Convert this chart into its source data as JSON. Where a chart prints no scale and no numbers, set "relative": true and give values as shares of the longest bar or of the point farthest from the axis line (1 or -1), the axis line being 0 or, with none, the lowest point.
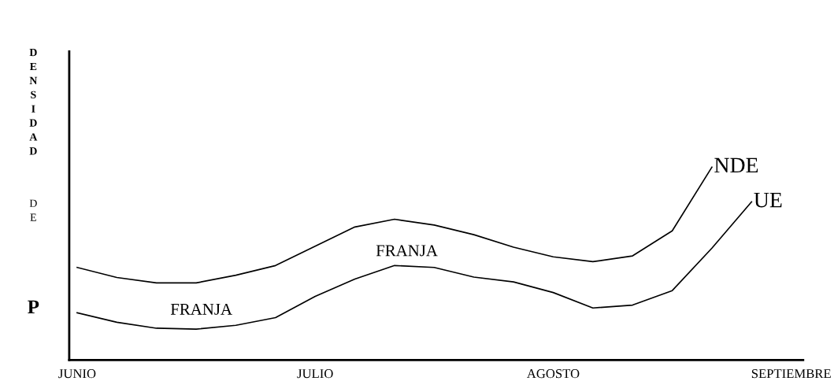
{
  "chart_data": {
    "type": "line",
    "relative": true,
    "ylabel": "DENSIDAD DE P",
    "categories": [
      "JUNIO",
      null,
      null,
      null,
      null,
      null,
      "JULIO",
      null,
      null,
      null,
      null,
      null,
      "AGOSTO",
      null,
      null,
      null,
      null,
      null,
      "SEPTIEMBRE"
    ],
    "series": [
      {
        "name": "NDE",
        "color": "#000000",
        "values": [
          0.48,
          0.428,
          0.4,
          0.4,
          0.44,
          0.49,
          0.59,
          0.69,
          0.73,
          0.7,
          0.65,
          0.585,
          0.535,
          0.51,
          0.54,
          0.67,
          1.0,
          null,
          null
        ]
      },
      {
        "name": "UE",
        "color": "#000000",
        "values": [
          0.245,
          0.196,
          0.165,
          0.16,
          0.18,
          0.22,
          0.33,
          0.42,
          0.49,
          0.48,
          0.43,
          0.405,
          0.35,
          0.27,
          0.285,
          0.36,
          0.58,
          0.82,
          null
        ]
      }
    ],
    "annotations": [
      "FRANJA",
      "FRANJA"
    ],
    "legend": false,
    "grid": false,
    "marker": "none",
    "line_style": "solid"
  }
}
